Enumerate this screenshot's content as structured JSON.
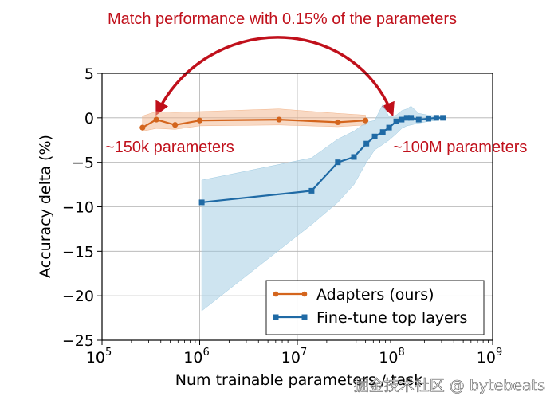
{
  "chart_data": {
    "type": "line",
    "x_scale": "log",
    "xlabel": "Num trainable parameters / task",
    "ylabel": "Accuracy delta (%)",
    "xlim": [
      100000,
      1000000000
    ],
    "ylim": [
      -25,
      5
    ],
    "x_ticks": [
      {
        "value": 100000,
        "base": "10",
        "exp": "5"
      },
      {
        "value": 1000000,
        "base": "10",
        "exp": "6"
      },
      {
        "value": 10000000,
        "base": "10",
        "exp": "7"
      },
      {
        "value": 100000000,
        "base": "10",
        "exp": "8"
      },
      {
        "value": 1000000000,
        "base": "10",
        "exp": "9"
      }
    ],
    "y_ticks": [
      {
        "value": 5,
        "label": "5"
      },
      {
        "value": 0,
        "label": "0"
      },
      {
        "value": -5,
        "label": "−5"
      },
      {
        "value": -10,
        "label": "−10"
      },
      {
        "value": -15,
        "label": "−15"
      },
      {
        "value": -20,
        "label": "−20"
      },
      {
        "value": -25,
        "label": "−25"
      }
    ],
    "grid": true,
    "legend_position": "lower-right",
    "series": [
      {
        "name": "Adapters (ours)",
        "color": "#d4651d",
        "band_color": "#f2b48a",
        "marker": "circle",
        "x": [
          260000,
          360000,
          560000,
          1000000,
          6500000,
          26000000,
          50000000
        ],
        "y": [
          -1.1,
          -0.2,
          -0.8,
          -0.3,
          -0.2,
          -0.5,
          -0.3
        ],
        "lower": [
          -1.5,
          -1.2,
          -1.3,
          -0.9,
          -0.8,
          -1.0,
          -0.8
        ],
        "upper": [
          0.2,
          0.7,
          0.6,
          0.7,
          1.0,
          0.5,
          0.3
        ]
      },
      {
        "name": "Fine-tune top layers",
        "color": "#1f6aa5",
        "band_color": "#9ecae1",
        "marker": "square",
        "x": [
          1050000,
          14000000,
          26000000,
          38000000,
          51000000,
          62000000,
          75000000,
          87000000,
          103000000,
          117000000,
          132000000,
          146000000,
          175000000,
          220000000,
          265000000,
          310000000
        ],
        "y": [
          -9.5,
          -8.2,
          -5.0,
          -4.4,
          -2.9,
          -2.1,
          -1.6,
          -1.1,
          -0.4,
          -0.2,
          0.0,
          0.0,
          -0.2,
          -0.1,
          0.0,
          0.0
        ],
        "lower": [
          -21.7,
          -12.0,
          -9.5,
          -7.5,
          -5.0,
          -3.6,
          -3.0,
          -2.5,
          -1.8,
          -1.2,
          -0.9,
          -0.8,
          -0.6,
          -0.4,
          -0.3,
          -0.2
        ],
        "upper": [
          -7.0,
          -4.5,
          -2.4,
          -1.5,
          -0.5,
          -0.3,
          1.5,
          0.1,
          0.3,
          0.8,
          1.0,
          1.3,
          0.5,
          0.3,
          0.2,
          0.1
        ]
      }
    ],
    "annotations": [
      {
        "text": "Match performance with 0.15% of the parameters",
        "color": "#c0101b"
      },
      {
        "text": "~150k parameters",
        "color": "#c0101b"
      },
      {
        "text": "~100M parameters",
        "color": "#c0101b"
      }
    ],
    "watermark": "掘金技术社区 @ bytebeats"
  }
}
